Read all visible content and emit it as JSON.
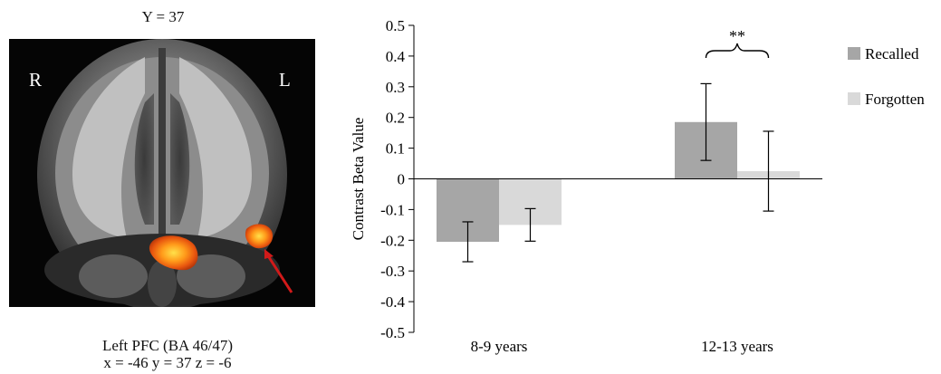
{
  "brain_panel": {
    "title": "Y = 37",
    "right_label": "R",
    "left_label": "L",
    "caption_line1": "Left PFC (BA 46/47)",
    "caption_line2": "x = -46 y = 37 z = -6"
  },
  "chart_data": {
    "type": "bar",
    "ylabel": "Contrast Beta Value",
    "ylim": [
      -0.5,
      0.5
    ],
    "yticks": [
      0.5,
      0.4,
      0.3,
      0.2,
      0.1,
      0,
      -0.1,
      -0.2,
      -0.3,
      -0.4,
      -0.5
    ],
    "ytick_labels": [
      "0.5",
      "0.4",
      "0.3",
      "0.2",
      "0.1",
      "0",
      "-0.1",
      "-0.2",
      "-0.3",
      "-0.4",
      "-0.5"
    ],
    "categories": [
      "8-9 years",
      "12-13 years"
    ],
    "series": [
      {
        "name": "Recalled",
        "color": "#a6a6a6",
        "values": [
          -0.205,
          0.185
        ],
        "errors": [
          0.065,
          0.125
        ]
      },
      {
        "name": "Forgotten",
        "color": "#d9d9d9",
        "values": [
          -0.15,
          0.025
        ],
        "errors": [
          0.053,
          0.13
        ]
      }
    ],
    "annotation": {
      "text": "**",
      "category": "12-13 years"
    },
    "legend_position": "top-right",
    "grid": false
  }
}
